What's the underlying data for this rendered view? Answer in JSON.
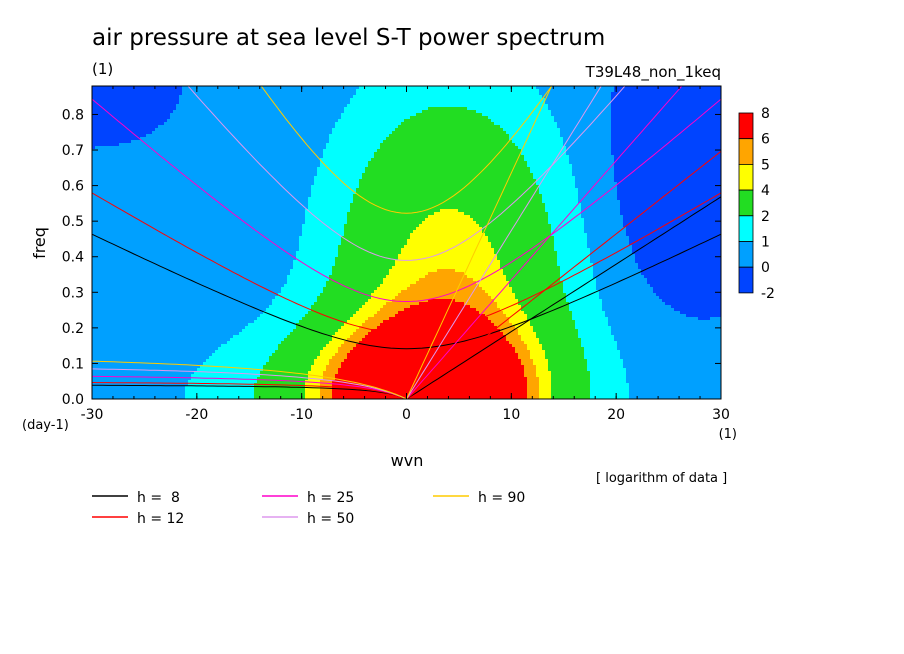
{
  "chart_data": {
    "type": "heatmap",
    "title": "air pressure at sea level S-T power spectrum",
    "subtitle_left": "(1)",
    "subtitle_right": "T39L48_non_1keq",
    "xlabel": "wvn",
    "ylabel": "freq",
    "x_unit": "(1)",
    "y_unit": "(day-1)",
    "xlim": [
      -30,
      30
    ],
    "ylim": [
      0.0,
      0.88
    ],
    "x_ticks": [
      "-30",
      "-20",
      "-10",
      "0",
      "10",
      "20",
      "30"
    ],
    "x_tick_values": [
      -30,
      -20,
      -10,
      0,
      10,
      20,
      30
    ],
    "y_ticks": [
      "0.0",
      "0.1",
      "0.2",
      "0.3",
      "0.4",
      "0.5",
      "0.6",
      "0.7",
      "0.8"
    ],
    "y_tick_values": [
      0.0,
      0.1,
      0.2,
      0.3,
      0.4,
      0.5,
      0.6,
      0.7,
      0.8
    ],
    "note": "[ logarithm of data ]",
    "colorbar": {
      "levels": [
        "8",
        "6",
        "5",
        "4",
        "2",
        "1",
        "0",
        "-2"
      ],
      "colors": [
        "#ff0000",
        "#ffa500",
        "#ffff00",
        "#22dd22",
        "#00ffff",
        "#00a0ff",
        "#0044ff"
      ]
    },
    "contour_level_colors": {
      "-2": "#0044ff",
      "0": "#00a0ff",
      "1": "#00ffff",
      "2": "#22dd22",
      "4": "#ffff00",
      "5": "#ffa500",
      "6": "#ff0000"
    },
    "dispersion_curves": [
      {
        "label": "h =  8",
        "h": 8,
        "color": "#000000"
      },
      {
        "label": "h = 12",
        "h": 12,
        "color": "#ff0000"
      },
      {
        "label": "h = 25",
        "h": 25,
        "color": "#ff00cc"
      },
      {
        "label": "h = 50",
        "h": 50,
        "color": "#dd99ee"
      },
      {
        "label": "h = 90",
        "h": 90,
        "color": "#ffcc00"
      }
    ]
  }
}
